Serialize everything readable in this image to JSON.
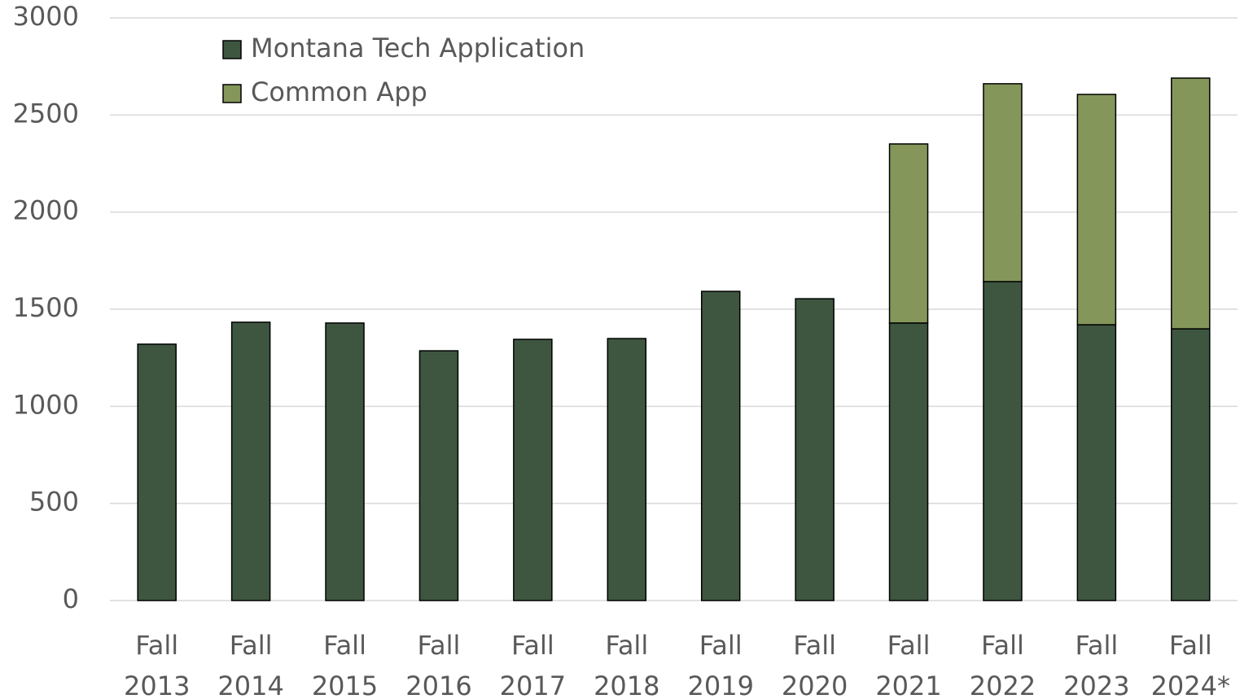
{
  "chart_data": {
    "type": "stacked_bar",
    "categories": [
      "Fall 2013",
      "Fall 2014",
      "Fall 2015",
      "Fall 2016",
      "Fall 2017",
      "Fall 2018",
      "Fall 2019",
      "Fall 2020",
      "Fall 2021",
      "Fall 2022",
      "Fall 2023",
      "Fall 2024*"
    ],
    "series": [
      {
        "name": "Montana Tech Application",
        "color": "#3e5640",
        "values": [
          1320,
          1433,
          1429,
          1286,
          1345,
          1349,
          1592,
          1554,
          1429,
          1642,
          1420,
          1399
        ]
      },
      {
        "name": "Common App",
        "color": "#84965a",
        "values": [
          null,
          null,
          null,
          null,
          null,
          null,
          null,
          null,
          922,
          1019,
          1186,
          1291
        ]
      }
    ],
    "ylim": [
      0,
      3000
    ],
    "yticks": [
      0,
      500,
      1000,
      1500,
      2000,
      2500,
      3000
    ],
    "grid": true,
    "legend": "top-left"
  }
}
